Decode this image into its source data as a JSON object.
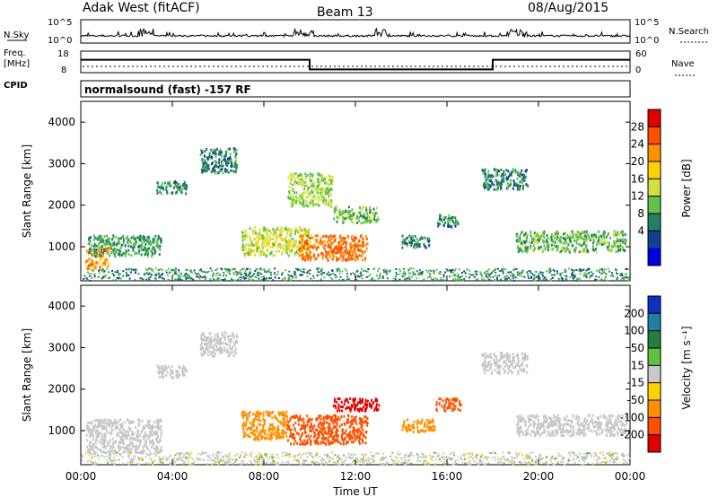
{
  "header": {
    "station": "Adak West (fitACF)",
    "beam": "Beam 13",
    "date": "08/Aug/2015"
  },
  "nsky_panel": {
    "label": "N.Sky",
    "right_label": "N.Search",
    "left_ticks": [
      "10^5",
      "10^0"
    ],
    "right_ticks": [
      "10^5",
      "10^0"
    ]
  },
  "freq_panel": {
    "label_line1": "Freq.",
    "label_line2": "[MHz]",
    "left_ticks": [
      "18",
      "8"
    ],
    "right_ticks": [
      "60",
      "0"
    ],
    "right_label": "Nave",
    "cpid_label": "CPID",
    "step_segments": [
      {
        "start_hour": 0,
        "end_hour": 10,
        "level": 0.6
      },
      {
        "start_hour": 10,
        "end_hour": 18,
        "level": 0.15
      },
      {
        "start_hour": 18,
        "end_hour": 24,
        "level": 0.6
      }
    ]
  },
  "mode_text": "normalsound (fast) -157 RF",
  "chart_data": [
    {
      "type": "heatmap",
      "ylabel": "Slant Range [km]",
      "colorbar_label": "Power [dB]",
      "colorbar_ticks": [
        "28",
        "24",
        "20",
        "16",
        "12",
        "8",
        "4"
      ],
      "colorbar_colors": [
        "#e00000",
        "#ff5000",
        "#ff9000",
        "#ffd000",
        "#d0e040",
        "#60c050",
        "#208060",
        "#104090",
        "#0000e0"
      ],
      "y_ticks": [
        "4000",
        "3000",
        "2000",
        "1000"
      ],
      "ylim": [
        180,
        4500
      ],
      "x_ticks": [
        "00:00",
        "04:00",
        "08:00",
        "12:00",
        "16:00",
        "20:00",
        "00:00"
      ],
      "xlim": [
        0,
        24
      ],
      "echo_regions": [
        {
          "t0": 0.2,
          "t1": 1.2,
          "r0": 500,
          "r1": 1000,
          "value": 24
        },
        {
          "t0": 0.3,
          "t1": 3.5,
          "r0": 800,
          "r1": 1300,
          "value": 10
        },
        {
          "t0": 3.3,
          "t1": 4.6,
          "r0": 2300,
          "r1": 2600,
          "value": 8
        },
        {
          "t0": 5.2,
          "t1": 6.8,
          "r0": 2800,
          "r1": 3400,
          "value": 8
        },
        {
          "t0": 7.0,
          "t1": 10.0,
          "r0": 800,
          "r1": 1500,
          "value": 16
        },
        {
          "t0": 9.5,
          "t1": 12.5,
          "r0": 700,
          "r1": 1300,
          "value": 26
        },
        {
          "t0": 9.0,
          "t1": 11.0,
          "r0": 2000,
          "r1": 2800,
          "value": 14
        },
        {
          "t0": 11.0,
          "t1": 13.0,
          "r0": 1600,
          "r1": 2000,
          "value": 12
        },
        {
          "t0": 14.0,
          "t1": 15.2,
          "r0": 1000,
          "r1": 1300,
          "value": 8
        },
        {
          "t0": 15.5,
          "t1": 16.5,
          "r0": 1500,
          "r1": 1800,
          "value": 8
        },
        {
          "t0": 17.5,
          "t1": 19.5,
          "r0": 2400,
          "r1": 2900,
          "value": 8
        },
        {
          "t0": 19.0,
          "t1": 23.8,
          "r0": 900,
          "r1": 1400,
          "value": 12
        }
      ]
    },
    {
      "type": "heatmap",
      "ylabel": "Slant Range [km]",
      "colorbar_label": "Velocity [m s⁻¹]",
      "colorbar_ticks": [
        "200",
        "100",
        "50",
        "15",
        "-15",
        "-50",
        "-100",
        "-200"
      ],
      "colorbar_colors": [
        "#1030c0",
        "#2080a0",
        "#208040",
        "#60c040",
        "#c8c8c8",
        "#ffd000",
        "#ff9000",
        "#ff5000",
        "#e00000"
      ],
      "y_ticks": [
        "4000",
        "3000",
        "2000",
        "1000"
      ],
      "ylim": [
        180,
        4500
      ],
      "x_ticks": [
        "00:00",
        "04:00",
        "08:00",
        "12:00",
        "16:00",
        "20:00",
        "00:00"
      ],
      "xlim": [
        0,
        24
      ],
      "xlabel": "Time UT",
      "echo_regions": [
        {
          "t0": 0.2,
          "t1": 3.5,
          "r0": 500,
          "r1": 1300,
          "value": 0
        },
        {
          "t0": 3.3,
          "t1": 4.6,
          "r0": 2300,
          "r1": 2600,
          "value": 0
        },
        {
          "t0": 5.2,
          "t1": 6.8,
          "r0": 2800,
          "r1": 3400,
          "value": 0
        },
        {
          "t0": 7.0,
          "t1": 9.0,
          "r0": 800,
          "r1": 1500,
          "value": -90
        },
        {
          "t0": 9.0,
          "t1": 12.5,
          "r0": 700,
          "r1": 1400,
          "value": -140
        },
        {
          "t0": 11.0,
          "t1": 13.0,
          "r0": 1500,
          "r1": 1800,
          "value": -200
        },
        {
          "t0": 14.0,
          "t1": 15.5,
          "r0": 1000,
          "r1": 1300,
          "value": -60
        },
        {
          "t0": 15.5,
          "t1": 16.6,
          "r0": 1500,
          "r1": 1800,
          "value": -120
        },
        {
          "t0": 17.5,
          "t1": 19.5,
          "r0": 2400,
          "r1": 2900,
          "value": 0
        },
        {
          "t0": 19.0,
          "t1": 23.8,
          "r0": 900,
          "r1": 1400,
          "value": 0
        }
      ]
    }
  ]
}
